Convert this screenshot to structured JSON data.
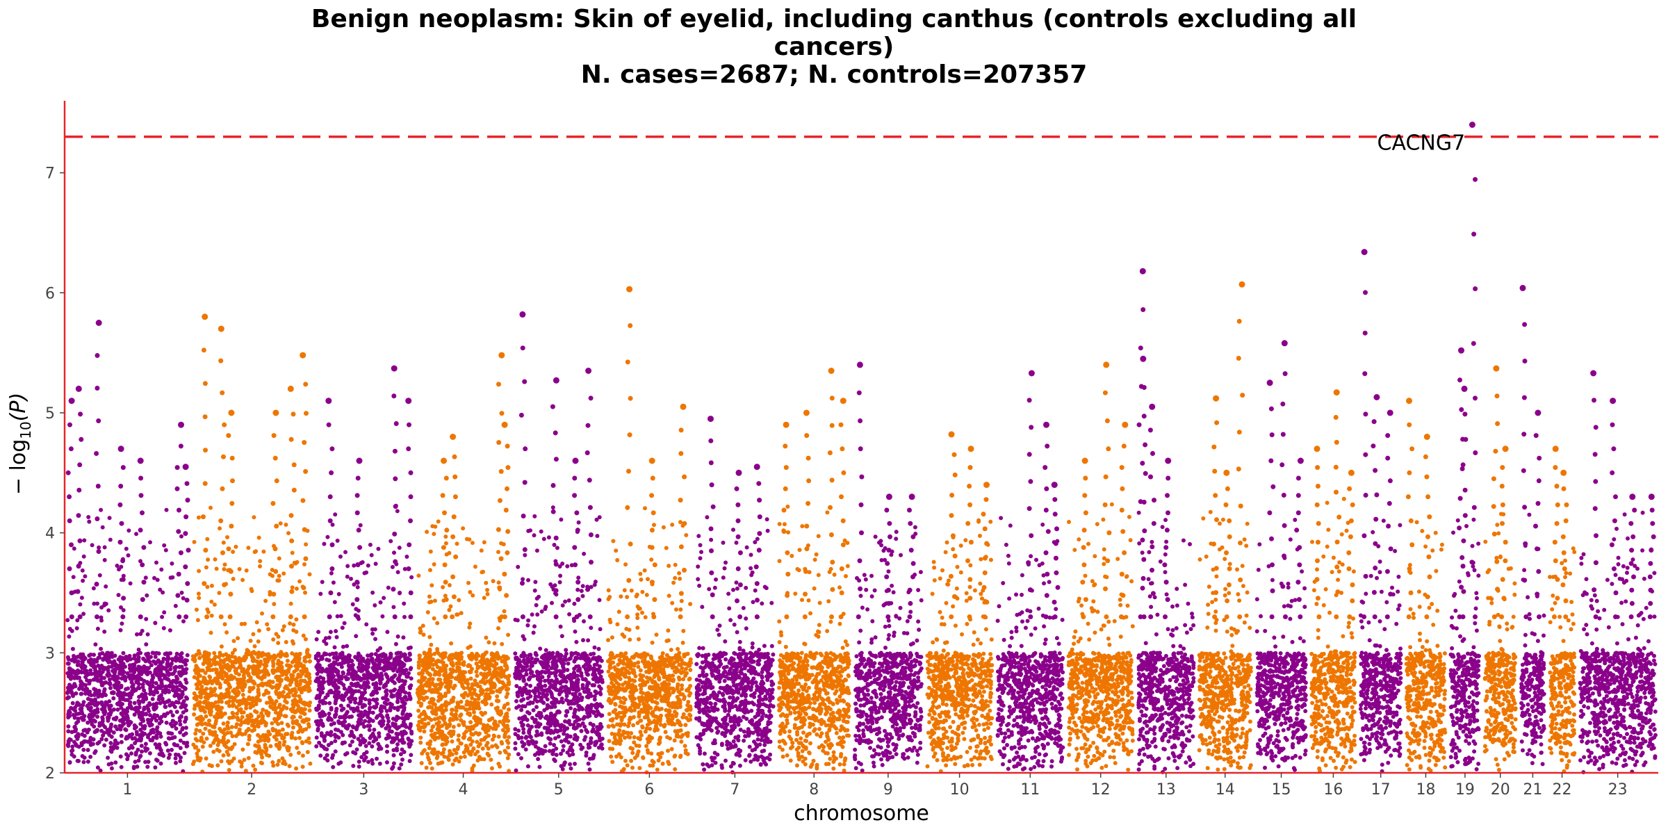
{
  "chart_data": {
    "type": "scatter",
    "title_lines": [
      "Benign neoplasm: Skin of eyelid, including canthus (controls excluding all",
      "cancers)",
      "N. cases=2687; N. controls=207357"
    ],
    "xlabel": "chromosome",
    "ylabel": "−log10(P)",
    "ylim": [
      2,
      7.6
    ],
    "y_ticks": [
      2,
      3,
      4,
      5,
      6,
      7
    ],
    "grid": false,
    "significance_line": 7.3,
    "colors": {
      "odd": "#8B008B",
      "even": "#EE7600",
      "significance": "#e8242b",
      "axis": "#e8242b"
    },
    "chromosomes": [
      {
        "label": "1",
        "length": 248,
        "max": 5.75,
        "spikes": [
          [
            0.02,
            5.1
          ],
          [
            0.1,
            5.2
          ],
          [
            0.25,
            5.75
          ],
          [
            0.45,
            4.7
          ],
          [
            0.62,
            4.6
          ],
          [
            0.93,
            4.9
          ],
          [
            0.99,
            4.55
          ]
        ]
      },
      {
        "label": "2",
        "length": 242,
        "max": 5.8,
        "spikes": [
          [
            0.1,
            5.8
          ],
          [
            0.25,
            5.7
          ],
          [
            0.32,
            5.0
          ],
          [
            0.7,
            5.0
          ],
          [
            0.85,
            5.2
          ],
          [
            0.95,
            5.48
          ]
        ]
      },
      {
        "label": "3",
        "length": 198,
        "max": 5.37,
        "spikes": [
          [
            0.15,
            5.1
          ],
          [
            0.45,
            4.6
          ],
          [
            0.82,
            5.37
          ],
          [
            0.97,
            5.1
          ]
        ]
      },
      {
        "label": "4",
        "length": 190,
        "max": 5.48,
        "spikes": [
          [
            0.3,
            4.6
          ],
          [
            0.4,
            4.8
          ],
          [
            0.9,
            5.48
          ],
          [
            0.97,
            4.9
          ]
        ]
      },
      {
        "label": "5",
        "length": 181,
        "max": 5.82,
        "spikes": [
          [
            0.1,
            5.82
          ],
          [
            0.45,
            5.27
          ],
          [
            0.7,
            4.6
          ],
          [
            0.85,
            5.35
          ]
        ]
      },
      {
        "label": "6",
        "length": 171,
        "max": 6.03,
        "spikes": [
          [
            0.25,
            6.03
          ],
          [
            0.55,
            4.6
          ],
          [
            0.9,
            5.05
          ]
        ]
      },
      {
        "label": "7",
        "length": 159,
        "max": 4.95,
        "spikes": [
          [
            0.2,
            4.95
          ],
          [
            0.55,
            4.5
          ],
          [
            0.8,
            4.55
          ]
        ]
      },
      {
        "label": "8",
        "length": 145,
        "max": 5.35,
        "spikes": [
          [
            0.1,
            4.9
          ],
          [
            0.4,
            5.0
          ],
          [
            0.75,
            5.35
          ],
          [
            0.9,
            5.1
          ]
        ]
      },
      {
        "label": "9",
        "length": 138,
        "max": 5.4,
        "spikes": [
          [
            0.08,
            5.4
          ],
          [
            0.5,
            4.3
          ],
          [
            0.85,
            4.3
          ]
        ]
      },
      {
        "label": "10",
        "length": 134,
        "max": 4.82,
        "spikes": [
          [
            0.4,
            4.82
          ],
          [
            0.65,
            4.7
          ],
          [
            0.9,
            4.4
          ]
        ]
      },
      {
        "label": "11",
        "length": 135,
        "max": 5.33,
        "spikes": [
          [
            0.5,
            5.33
          ],
          [
            0.75,
            4.9
          ],
          [
            0.9,
            4.4
          ]
        ]
      },
      {
        "label": "12",
        "length": 133,
        "max": 5.4,
        "spikes": [
          [
            0.25,
            4.6
          ],
          [
            0.6,
            5.4
          ],
          [
            0.85,
            4.9
          ]
        ]
      },
      {
        "label": "13",
        "length": 114,
        "max": 6.18,
        "spikes": [
          [
            0.05,
            6.18
          ],
          [
            0.1,
            5.45
          ],
          [
            0.25,
            5.05
          ],
          [
            0.5,
            4.6
          ]
        ]
      },
      {
        "label": "14",
        "length": 107,
        "max": 6.07,
        "spikes": [
          [
            0.3,
            5.12
          ],
          [
            0.55,
            4.5
          ],
          [
            0.8,
            6.07
          ]
        ]
      },
      {
        "label": "15",
        "length": 102,
        "max": 5.58,
        "spikes": [
          [
            0.3,
            5.25
          ],
          [
            0.55,
            5.58
          ],
          [
            0.85,
            4.6
          ]
        ]
      },
      {
        "label": "16",
        "length": 90,
        "max": 5.17,
        "spikes": [
          [
            0.15,
            4.7
          ],
          [
            0.6,
            5.17
          ],
          [
            0.9,
            4.5
          ]
        ]
      },
      {
        "label": "17",
        "length": 83,
        "max": 6.34,
        "spikes": [
          [
            0.08,
            6.34
          ],
          [
            0.35,
            5.13
          ],
          [
            0.7,
            5.0
          ]
        ]
      },
      {
        "label": "18",
        "length": 80,
        "max": 5.1,
        "spikes": [
          [
            0.1,
            5.1
          ],
          [
            0.55,
            4.8
          ]
        ]
      },
      {
        "label": "19",
        "length": 59,
        "max": 7.4,
        "spikes": [
          [
            0.35,
            5.52
          ],
          [
            0.8,
            7.4
          ],
          [
            0.5,
            5.2
          ]
        ]
      },
      {
        "label": "20",
        "length": 64,
        "max": 5.37,
        "spikes": [
          [
            0.35,
            5.37
          ],
          [
            0.6,
            4.7
          ]
        ]
      },
      {
        "label": "21",
        "length": 47,
        "max": 6.04,
        "spikes": [
          [
            0.15,
            6.04
          ],
          [
            0.7,
            5.0
          ]
        ]
      },
      {
        "label": "22",
        "length": 51,
        "max": 4.7,
        "spikes": [
          [
            0.25,
            4.7
          ],
          [
            0.6,
            4.5
          ]
        ]
      },
      {
        "label": "23",
        "length": 156,
        "max": 5.33,
        "spikes": [
          [
            0.2,
            5.33
          ],
          [
            0.45,
            5.1
          ],
          [
            0.7,
            4.3
          ],
          [
            0.95,
            4.3
          ]
        ]
      }
    ],
    "annotations": [
      {
        "text": "CACNG7",
        "chromosome": "19",
        "value": 7.4
      }
    ]
  }
}
